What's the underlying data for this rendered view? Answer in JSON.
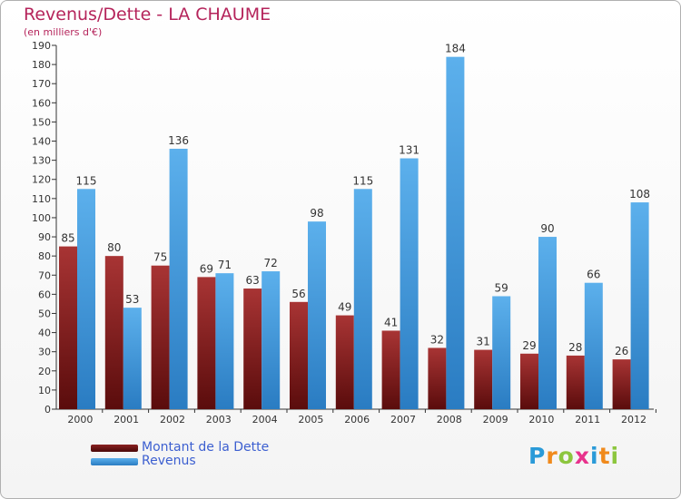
{
  "header": {
    "title": "Revenus/Dette - LA CHAUME",
    "subtitle": "(en milliers d'€)"
  },
  "chart_data": {
    "type": "bar",
    "title": "Revenus/Dette - LA CHAUME",
    "subtitle": "(en milliers d'€)",
    "xlabel": "",
    "ylabel": "",
    "ylim": [
      0,
      190
    ],
    "ytick_step": 10,
    "grid": false,
    "legend_position": "bottom-left",
    "categories": [
      "2000",
      "2001",
      "2002",
      "2003",
      "2004",
      "2005",
      "2006",
      "2007",
      "2008",
      "2009",
      "2010",
      "2011",
      "2012"
    ],
    "series": [
      {
        "name": "Montant de la Dette",
        "color": "#7a1a1a",
        "values": [
          85,
          80,
          75,
          69,
          63,
          56,
          49,
          41,
          32,
          31,
          29,
          28,
          26
        ]
      },
      {
        "name": "Revenus",
        "color": "#3a92d8",
        "values": [
          115,
          53,
          136,
          71,
          72,
          98,
          115,
          131,
          184,
          59,
          90,
          66,
          108
        ]
      }
    ]
  },
  "legend": {
    "items": [
      {
        "label": "Montant de la Dette",
        "color": "#7a1a1a"
      },
      {
        "label": "Revenus",
        "color": "#3a92d8"
      }
    ]
  },
  "logo": {
    "letters": [
      "P",
      "r",
      "o",
      "x",
      "i",
      "t",
      "i"
    ],
    "colors": [
      "#2a9ad8",
      "#f08a1c",
      "#8cc63e",
      "#e8328c",
      "#2a9ad8",
      "#f08a1c",
      "#8cc63e"
    ]
  }
}
